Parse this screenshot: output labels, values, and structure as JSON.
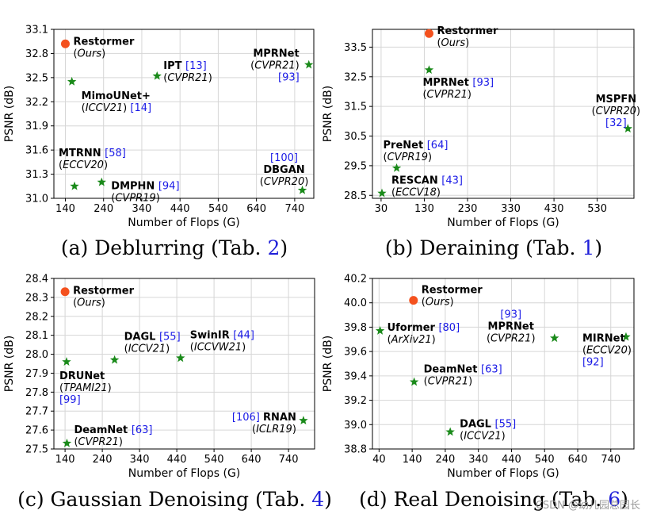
{
  "chart_data": [
    {
      "type": "scatter",
      "caption": "(a) Deblurring (Tab. 2)",
      "caption_text": "(a) Deblurring (Tab. ",
      "caption_ref": "2",
      "caption_close": ")",
      "xlabel": "Number of Flops (G)",
      "ylabel": "PSNR (dB)",
      "xlim": [
        110,
        790
      ],
      "ylim": [
        31.0,
        33.1
      ],
      "xticks": [
        140,
        240,
        340,
        440,
        540,
        640,
        740
      ],
      "yticks": [
        31.0,
        31.3,
        31.6,
        31.9,
        32.2,
        32.5,
        32.8,
        33.1
      ],
      "grid": true,
      "points": [
        {
          "name": "Restormer",
          "note": "Ours",
          "ref": "",
          "x": 140,
          "y": 32.92,
          "marker": "circle",
          "color": "#f4511e"
        },
        {
          "name": "MimoUNet+",
          "note": "ICCV21",
          "ref": "14",
          "x": 157,
          "y": 32.45,
          "marker": "star",
          "color": "#1a8a1a"
        },
        {
          "name": "IPT",
          "note": "CVPR21",
          "ref": "13",
          "x": 380,
          "y": 32.52,
          "marker": "star",
          "color": "#1a8a1a"
        },
        {
          "name": "MPRNet",
          "note": "CVPR21",
          "ref": "93",
          "x": 777,
          "y": 32.66,
          "marker": "star",
          "color": "#1a8a1a"
        },
        {
          "name": "MTRNN",
          "note": "ECCV20",
          "ref": "58",
          "x": 164,
          "y": 31.15,
          "marker": "star",
          "color": "#1a8a1a"
        },
        {
          "name": "DMPHN",
          "note": "CVPR19",
          "ref": "94",
          "x": 235,
          "y": 31.2,
          "marker": "star",
          "color": "#1a8a1a"
        },
        {
          "name": "DBGAN",
          "note": "CVPR20",
          "ref": "100",
          "x": 760,
          "y": 31.1,
          "marker": "star",
          "color": "#1a8a1a"
        }
      ]
    },
    {
      "type": "scatter",
      "caption": "(b) Deraining (Tab. 1)",
      "caption_text": "(b) Deraining (Tab. ",
      "caption_ref": "1",
      "caption_close": ")",
      "xlabel": "Number of Flops (G)",
      "ylabel": "PSNR (dB)",
      "xlim": [
        10,
        615
      ],
      "ylim": [
        28.4,
        34.1
      ],
      "xticks": [
        30,
        130,
        230,
        330,
        430,
        530
      ],
      "yticks": [
        28.5,
        29.5,
        30.5,
        31.5,
        32.5,
        33.5
      ],
      "grid": true,
      "points": [
        {
          "name": "Restormer",
          "note": "Ours",
          "ref": "",
          "x": 141,
          "y": 33.96,
          "marker": "circle",
          "color": "#f4511e"
        },
        {
          "name": "MPRNet",
          "note": "CVPR21",
          "ref": "93",
          "x": 141,
          "y": 32.73,
          "marker": "star",
          "color": "#1a8a1a"
        },
        {
          "name": "MSPFN",
          "note": "CVPR20",
          "ref": "32",
          "x": 601,
          "y": 30.75,
          "marker": "star",
          "color": "#1a8a1a"
        },
        {
          "name": "PreNet",
          "note": "CVPR19",
          "ref": "64",
          "x": 66,
          "y": 29.42,
          "marker": "star",
          "color": "#1a8a1a"
        },
        {
          "name": "RESCAN",
          "note": "ECCV18",
          "ref": "43",
          "x": 32,
          "y": 28.57,
          "marker": "star",
          "color": "#1a8a1a"
        }
      ]
    },
    {
      "type": "scatter",
      "caption": "(c) Gaussian Denoising (Tab. 4)",
      "caption_text": "(c) Gaussian Denoising (Tab. ",
      "caption_ref": "4",
      "caption_close": ")",
      "xlabel": "Number of Flops (G)",
      "ylabel": "PSNR (dB)",
      "xlim": [
        110,
        810
      ],
      "ylim": [
        27.5,
        28.4
      ],
      "xticks": [
        140,
        240,
        340,
        440,
        540,
        640,
        740
      ],
      "yticks": [
        27.5,
        27.6,
        27.7,
        27.8,
        27.9,
        28.0,
        28.1,
        28.2,
        28.3,
        28.4
      ],
      "grid": true,
      "points": [
        {
          "name": "Restormer",
          "note": "Ours",
          "ref": "",
          "x": 140,
          "y": 28.33,
          "marker": "circle",
          "color": "#f4511e"
        },
        {
          "name": "DAGL",
          "note": "ICCV21",
          "ref": "55",
          "x": 273,
          "y": 27.97,
          "marker": "star",
          "color": "#1a8a1a"
        },
        {
          "name": "SwinIR",
          "note": "ICCVW21",
          "ref": "44",
          "x": 450,
          "y": 27.98,
          "marker": "star",
          "color": "#1a8a1a"
        },
        {
          "name": "DRUNet",
          "note": "TPAMI21",
          "ref": "99",
          "x": 144,
          "y": 27.96,
          "marker": "star",
          "color": "#1a8a1a"
        },
        {
          "name": "DeamNet",
          "note": "CVPR21",
          "ref": "63",
          "x": 145,
          "y": 27.53,
          "marker": "star",
          "color": "#1a8a1a"
        },
        {
          "name": "RNAN",
          "note": "ICLR19",
          "ref": "106",
          "x": 780,
          "y": 27.65,
          "marker": "star",
          "color": "#1a8a1a"
        }
      ]
    },
    {
      "type": "scatter",
      "caption": "(d) Real Denoising (Tab. 6)",
      "caption_text": "(d) Real Denoising (Tab. ",
      "caption_ref": "6",
      "caption_close": ")",
      "xlabel": "Number of Flops (G)",
      "ylabel": "PSNR (dB)",
      "xlim": [
        20,
        810
      ],
      "ylim": [
        38.8,
        40.2
      ],
      "xticks": [
        40,
        140,
        240,
        340,
        440,
        540,
        640,
        740
      ],
      "yticks": [
        38.8,
        39.0,
        39.2,
        39.4,
        39.6,
        39.8,
        40.0,
        40.2
      ],
      "grid": true,
      "points": [
        {
          "name": "Restormer",
          "note": "Ours",
          "ref": "",
          "x": 144,
          "y": 40.02,
          "marker": "circle",
          "color": "#f4511e"
        },
        {
          "name": "Uformer",
          "note": "ArXiv21",
          "ref": "80",
          "x": 43,
          "y": 39.77,
          "marker": "star",
          "color": "#1a8a1a"
        },
        {
          "name": "MPRNet",
          "note": "CVPR21",
          "ref": "93",
          "x": 570,
          "y": 39.71,
          "marker": "star",
          "color": "#1a8a1a"
        },
        {
          "name": "MIRNet",
          "note": "ECCV20",
          "ref": "92",
          "x": 786,
          "y": 39.72,
          "marker": "star",
          "color": "#1a8a1a"
        },
        {
          "name": "DeamNet",
          "note": "CVPR21",
          "ref": "63",
          "x": 146,
          "y": 39.35,
          "marker": "star",
          "color": "#1a8a1a"
        },
        {
          "name": "DAGL",
          "note": "ICCV21",
          "ref": "55",
          "x": 255,
          "y": 38.94,
          "marker": "star",
          "color": "#1a8a1a"
        }
      ]
    }
  ],
  "watermark": "CSDN @幼儿园总园长"
}
